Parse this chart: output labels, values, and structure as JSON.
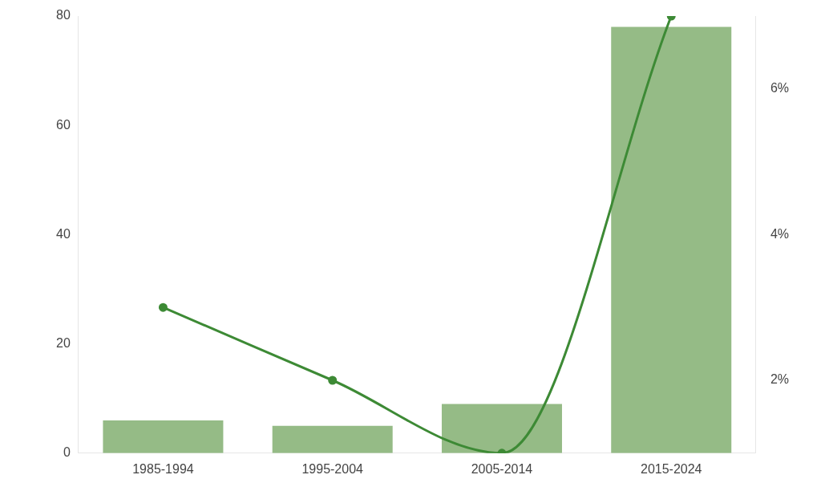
{
  "chart_data": {
    "type": "bar",
    "categories": [
      "1985-1994",
      "1995-2004",
      "2005-2014",
      "2015-2024"
    ],
    "series": [
      {
        "color": "#95bb86",
        "values": [
          6,
          5,
          9,
          78
        ]
      },
      {
        "type": "line",
        "axis": "y2",
        "color": "#3d8a35",
        "values": [
          3,
          2,
          1,
          7
        ],
        "marker": "circle"
      }
    ],
    "ylim": [
      0,
      80
    ],
    "yticks": [
      0,
      20,
      40,
      60,
      80
    ],
    "y2lim": [
      1,
      7
    ],
    "y2ticks": [
      {
        "value": 2,
        "label": "2%"
      },
      {
        "value": 4,
        "label": "4%"
      },
      {
        "value": 6,
        "label": "6%"
      }
    ],
    "grid": false,
    "legend": false
  }
}
